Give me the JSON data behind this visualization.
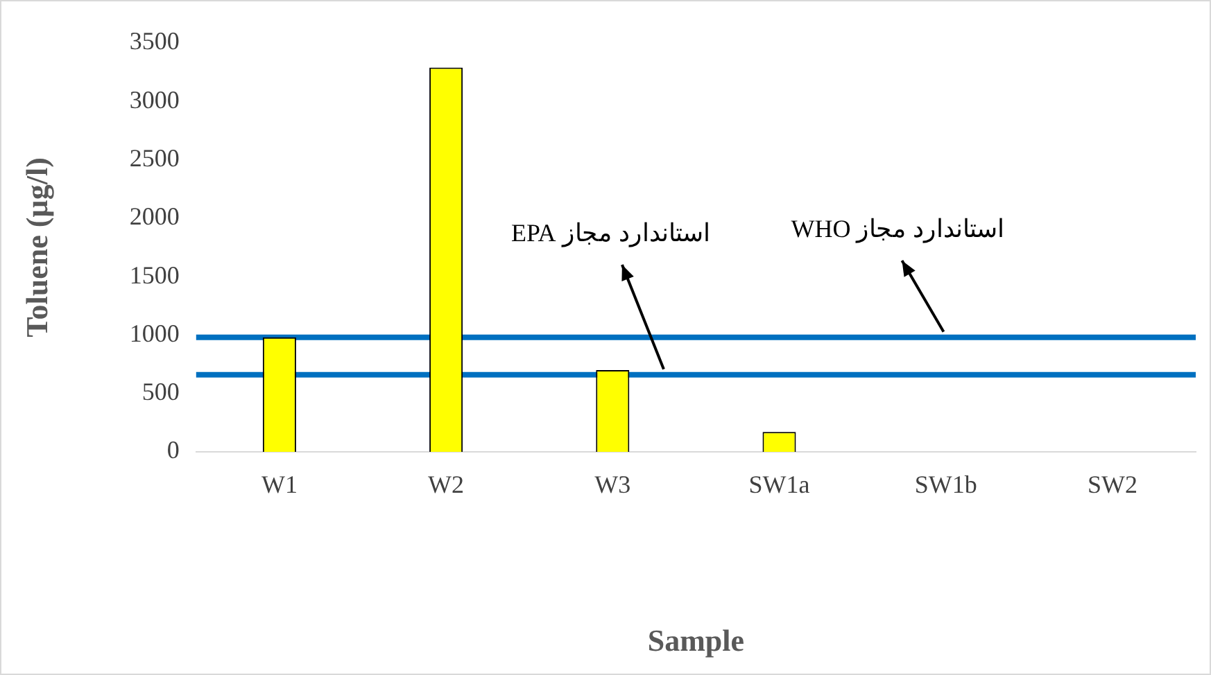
{
  "chart_data": {
    "type": "bar",
    "xlabel": "Sample",
    "ylabel": "Toluene (µg/l)",
    "categories": [
      "W1",
      "W2",
      "W3",
      "SW1a",
      "SW1b",
      "SW2"
    ],
    "values": [
      980,
      3290,
      700,
      170,
      0,
      0
    ],
    "color": "#ffff00",
    "ylim": [
      0,
      3500
    ],
    "yticks": [
      0,
      500,
      1000,
      1500,
      2000,
      2500,
      3000,
      3500
    ],
    "grid": false,
    "legend": false,
    "ref_lines": [
      {
        "axis": "y",
        "value": 980,
        "label": "استاندارد مجاز WHO",
        "color": "#0070c0"
      },
      {
        "axis": "y",
        "value": 660,
        "label": "استاندارد مجاز EPA",
        "color": "#0070c0"
      }
    ]
  }
}
